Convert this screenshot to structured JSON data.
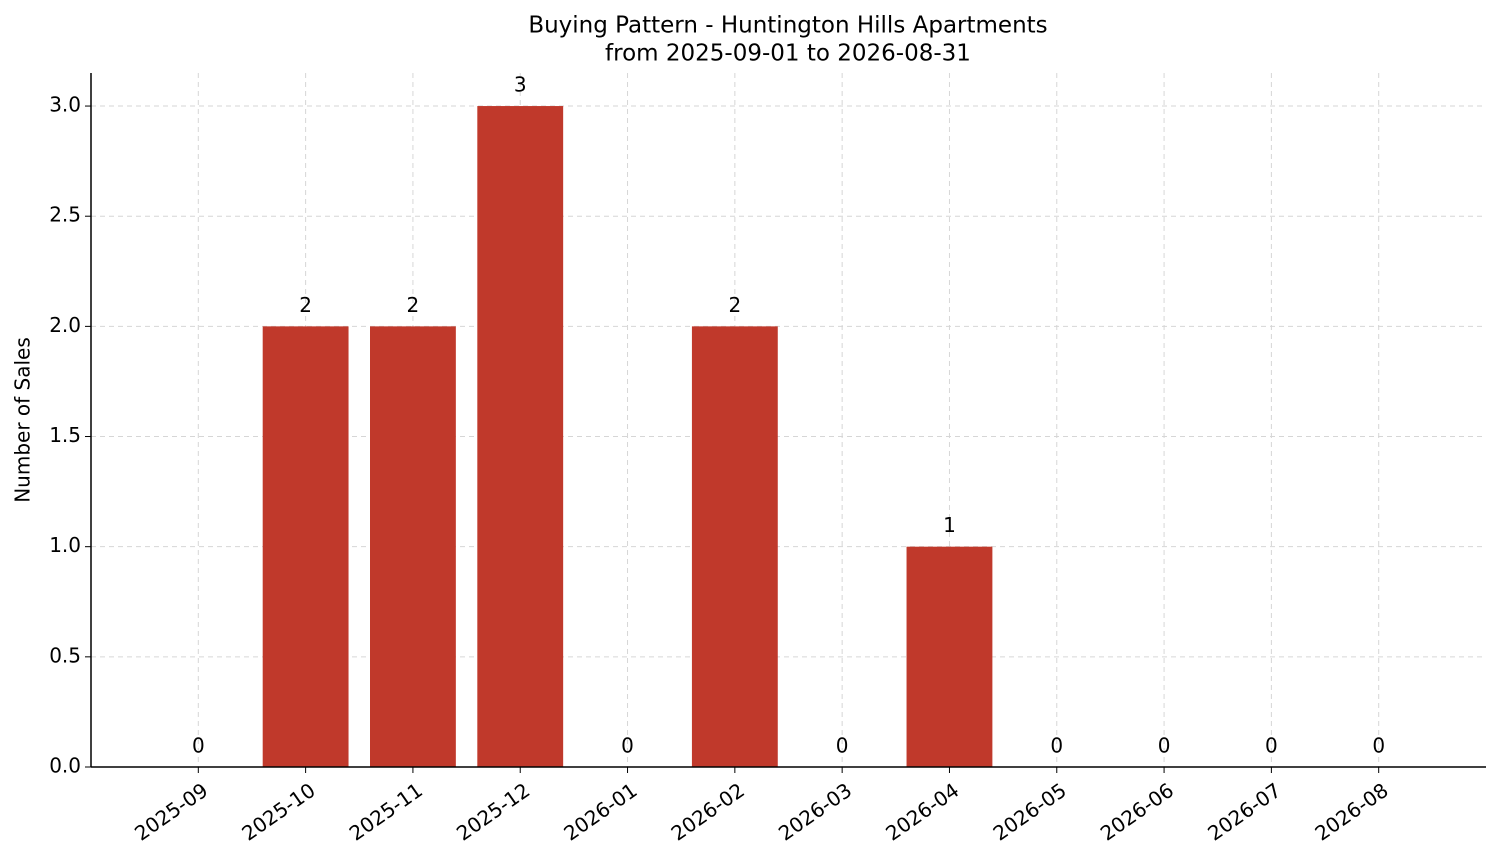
{
  "chart_data": {
    "type": "bar",
    "title": "Buying Pattern - Huntington Hills Apartments",
    "subtitle": "from 2025-09-01 to 2026-08-31",
    "y_label": "Number of Sales",
    "categories": [
      "2025-09",
      "2025-10",
      "2025-11",
      "2025-12",
      "2026-01",
      "2026-02",
      "2026-03",
      "2026-04",
      "2026-05",
      "2026-06",
      "2026-07",
      "2026-08"
    ],
    "values": [
      0,
      2,
      2,
      3,
      0,
      2,
      0,
      1,
      0,
      0,
      0,
      0
    ],
    "color": "#c0392b",
    "ylim": [
      0,
      3.15
    ],
    "yticks": [
      {
        "value": 0,
        "label": "0.0"
      },
      {
        "value": 0.5,
        "label": "0.5"
      },
      {
        "value": 1,
        "label": "1.0"
      },
      {
        "value": 1.5,
        "label": "1.5"
      },
      {
        "value": 2,
        "label": "2.0"
      },
      {
        "value": 2.5,
        "label": "2.5"
      },
      {
        "value": 3,
        "label": "3.0"
      }
    ],
    "grid": true
  }
}
